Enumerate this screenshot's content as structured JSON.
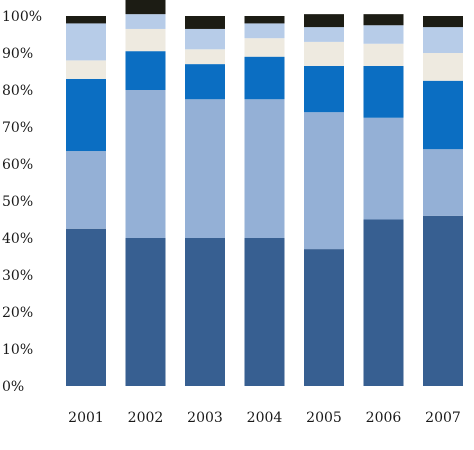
{
  "chart_data": {
    "type": "bar",
    "stacked": true,
    "categories": [
      "2001",
      "2002",
      "2003",
      "2004",
      "2005",
      "2006",
      "2007"
    ],
    "series": [
      {
        "color": "#375f91",
        "values": [
          42.5,
          40,
          40,
          40,
          37,
          45,
          46
        ]
      },
      {
        "color": "#94b0d6",
        "values": [
          21,
          40,
          37.5,
          37.5,
          37,
          27.5,
          18
        ]
      },
      {
        "color": "#0b6ec2",
        "values": [
          19.5,
          10.5,
          9.5,
          11.5,
          12.5,
          14,
          18.5
        ]
      },
      {
        "color": "#eeeae0",
        "values": [
          5,
          6,
          4,
          5,
          6.5,
          6,
          7.5
        ]
      },
      {
        "color": "#b7cce8",
        "values": [
          10,
          4,
          5.5,
          4,
          4,
          5,
          7
        ]
      },
      {
        "color": "#1c1c14",
        "values": [
          2,
          4,
          3.5,
          2,
          3.5,
          3,
          3
        ]
      }
    ],
    "y_ticks": [
      "0%",
      "10%",
      "20%",
      "30%",
      "40%",
      "50%",
      "60%",
      "70%",
      "80%",
      "90%",
      "100%"
    ],
    "ylim": [
      0,
      100
    ],
    "grid": false,
    "legend": "none",
    "title": "",
    "xlabel": "",
    "ylabel": ""
  }
}
